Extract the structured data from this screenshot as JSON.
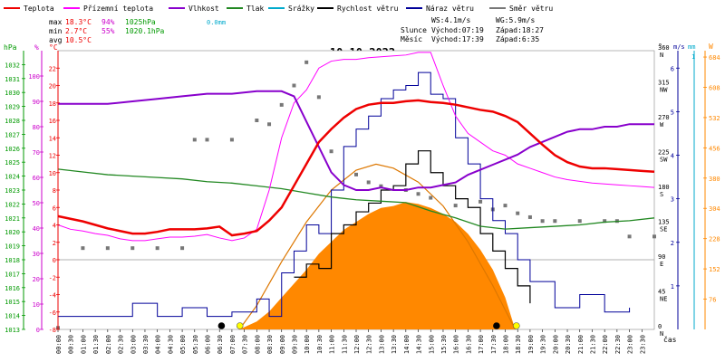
{
  "chart_data": {
    "type": "line",
    "title": "10.10.2022",
    "x_axis": {
      "label": "čas",
      "tick_labels": [
        "00:00",
        "00:30",
        "01:00",
        "01:30",
        "02:00",
        "02:30",
        "03:00",
        "03:30",
        "04:00",
        "04:30",
        "05:00",
        "05:30",
        "06:00",
        "06:30",
        "07:00",
        "07:30",
        "08:00",
        "08:30",
        "09:00",
        "09:30",
        "10:00",
        "10:30",
        "11:00",
        "11:30",
        "12:00",
        "12:30",
        "13:00",
        "13:30",
        "14:00",
        "14:30",
        "15:00",
        "15:30",
        "16:00",
        "16:30",
        "17:00",
        "17:30",
        "18:00",
        "18:30",
        "19:00",
        "19:30",
        "20:00",
        "20:30",
        "21:00",
        "21:30",
        "22:00",
        "22:30",
        "23:00",
        "23:30"
      ],
      "range_hours": [
        0,
        24
      ]
    },
    "axes": {
      "pressure": {
        "unit": "hPa",
        "color": "#009900",
        "ticks": [
          1013,
          1014,
          1015,
          1016,
          1017,
          1018,
          1019,
          1020,
          1021,
          1022,
          1023,
          1024,
          1025,
          1026,
          1027,
          1028,
          1029,
          1030,
          1031,
          1032
        ],
        "range": [
          1013,
          1033
        ]
      },
      "humidity": {
        "unit": "%",
        "color": "#cc00cc",
        "ticks": [
          0,
          10,
          20,
          30,
          40,
          50,
          60,
          70,
          80,
          90,
          100
        ],
        "range": [
          0,
          110
        ]
      },
      "temperature": {
        "unit": "°C",
        "color": "#ee0000",
        "ticks": [
          -8,
          -6,
          -4,
          -2,
          0,
          2,
          4,
          6,
          8,
          10,
          12,
          14,
          16,
          18,
          20,
          22
        ],
        "range": [
          -8,
          24
        ]
      },
      "direction": {
        "unit": "°",
        "color": "#000000",
        "ticks": [
          {
            "v": 0,
            "t": "N"
          },
          {
            "v": 45,
            "t": "NE"
          },
          {
            "v": 90,
            "t": "E"
          },
          {
            "v": 135,
            "t": "SE"
          },
          {
            "v": 180,
            "t": "S"
          },
          {
            "v": 225,
            "t": "SW"
          },
          {
            "v": 270,
            "t": "W"
          },
          {
            "v": 315,
            "t": "NW"
          },
          {
            "v": 360,
            "t": "N"
          }
        ],
        "range": [
          0,
          360
        ]
      },
      "wind_speed": {
        "unit": "m/s",
        "color": "#000099",
        "ticks": [
          1,
          2,
          3,
          4,
          5,
          6
        ],
        "range": [
          0,
          6.4
        ]
      },
      "precipitation": {
        "unit": "mm",
        "color": "#00aacc",
        "ticks": [
          1
        ]
      },
      "solar": {
        "unit": "W",
        "color": "#ff8800",
        "ticks": [
          76,
          152,
          228,
          304,
          380,
          456,
          532,
          608,
          684
        ],
        "range": [
          0,
          700
        ]
      }
    },
    "legend": [
      {
        "name": "Teplota",
        "color": "#ee0000"
      },
      {
        "name": "Přízemní teplota",
        "color": "#ff00ff"
      },
      {
        "name": "Vlhkost",
        "color": "#8800cc"
      },
      {
        "name": "Tlak",
        "color": "#228822"
      },
      {
        "name": "Srážky",
        "color": "#00aacc"
      },
      {
        "name": "Rychlost větru",
        "color": "#000000"
      },
      {
        "name": "Náraz větru",
        "color": "#000099"
      },
      {
        "name": "Směr větru",
        "color": "#777777"
      }
    ],
    "stats": {
      "max": {
        "label": "max",
        "temp": "18.3°C",
        "hum": "94%",
        "press": "1025hPa",
        "rain": "0.0mm"
      },
      "min": {
        "label": "min",
        "temp": "2.7°C",
        "hum": "55%",
        "press": "1020.1hPa"
      },
      "avg": {
        "label": "avg",
        "temp": "10.5°C"
      },
      "ws": "WS:4.1m/s",
      "wg": "WG:5.9m/s",
      "sun": {
        "label": "Slunce",
        "rise": "Východ:07:19",
        "set": "Západ:18:27"
      },
      "moon": {
        "label": "Měsíc",
        "rise": "Východ:17:39",
        "set": "Západ:6:35"
      }
    },
    "series": {
      "temperature": [
        [
          0,
          5
        ],
        [
          0.5,
          4.7
        ],
        [
          1,
          4.4
        ],
        [
          1.5,
          4.0
        ],
        [
          2,
          3.6
        ],
        [
          2.5,
          3.3
        ],
        [
          3,
          3.0
        ],
        [
          3.5,
          3.0
        ],
        [
          4,
          3.2
        ],
        [
          4.5,
          3.5
        ],
        [
          5,
          3.5
        ],
        [
          5.5,
          3.5
        ],
        [
          6,
          3.6
        ],
        [
          6.5,
          3.8
        ],
        [
          7,
          2.8
        ],
        [
          7.5,
          3.0
        ],
        [
          8,
          3.3
        ],
        [
          8.5,
          4.5
        ],
        [
          9,
          6.0
        ],
        [
          9.5,
          8.5
        ],
        [
          10,
          11.0
        ],
        [
          10.5,
          13.5
        ],
        [
          11,
          15.0
        ],
        [
          11.5,
          16.3
        ],
        [
          12,
          17.3
        ],
        [
          12.5,
          17.8
        ],
        [
          13,
          18.0
        ],
        [
          13.5,
          18.0
        ],
        [
          14,
          18.2
        ],
        [
          14.5,
          18.3
        ],
        [
          15,
          18.1
        ],
        [
          15.5,
          18.0
        ],
        [
          16,
          17.8
        ],
        [
          16.5,
          17.5
        ],
        [
          17,
          17.2
        ],
        [
          17.5,
          17.0
        ],
        [
          18,
          16.5
        ],
        [
          18.5,
          15.8
        ],
        [
          19,
          14.5
        ],
        [
          19.5,
          13.2
        ],
        [
          20,
          12.0
        ],
        [
          20.5,
          11.2
        ],
        [
          21,
          10.7
        ],
        [
          21.5,
          10.5
        ],
        [
          22,
          10.5
        ],
        [
          22.5,
          10.4
        ],
        [
          23,
          10.3
        ],
        [
          23.5,
          10.2
        ],
        [
          24,
          10.1
        ]
      ],
      "ground_temperature": [
        [
          0,
          4.0
        ],
        [
          0.5,
          3.5
        ],
        [
          1,
          3.3
        ],
        [
          1.5,
          3.0
        ],
        [
          2,
          2.8
        ],
        [
          2.5,
          2.4
        ],
        [
          3,
          2.2
        ],
        [
          3.5,
          2.2
        ],
        [
          4,
          2.4
        ],
        [
          4.5,
          2.6
        ],
        [
          5,
          2.6
        ],
        [
          5.5,
          2.7
        ],
        [
          6,
          2.9
        ],
        [
          6.5,
          2.5
        ],
        [
          7,
          2.2
        ],
        [
          7.5,
          2.5
        ],
        [
          8,
          3.5
        ],
        [
          8.5,
          8.0
        ],
        [
          9,
          14.0
        ],
        [
          9.5,
          18.0
        ],
        [
          10,
          19.5
        ],
        [
          10.5,
          22.0
        ],
        [
          11,
          22.8
        ],
        [
          11.5,
          23.0
        ],
        [
          12,
          23.0
        ],
        [
          12.5,
          23.2
        ],
        [
          13,
          23.3
        ],
        [
          13.5,
          23.4
        ],
        [
          14,
          23.5
        ],
        [
          14.5,
          23.8
        ],
        [
          15,
          23.8
        ],
        [
          15.5,
          20.0
        ],
        [
          16,
          16.5
        ],
        [
          16.5,
          14.5
        ],
        [
          17,
          13.5
        ],
        [
          17.5,
          12.5
        ],
        [
          18,
          12.0
        ],
        [
          18.5,
          11.0
        ],
        [
          19,
          10.5
        ],
        [
          19.5,
          10.0
        ],
        [
          20,
          9.5
        ],
        [
          20.5,
          9.2
        ],
        [
          21,
          9.0
        ],
        [
          21.5,
          8.8
        ],
        [
          22,
          8.7
        ],
        [
          22.5,
          8.6
        ],
        [
          23,
          8.5
        ],
        [
          23.5,
          8.4
        ],
        [
          24,
          8.3
        ]
      ],
      "humidity": [
        [
          0,
          89
        ],
        [
          1,
          89
        ],
        [
          2,
          89
        ],
        [
          3,
          90
        ],
        [
          4,
          91
        ],
        [
          5,
          92
        ],
        [
          6,
          93
        ],
        [
          7,
          93
        ],
        [
          8,
          94
        ],
        [
          9,
          94
        ],
        [
          9.5,
          92
        ],
        [
          10,
          82
        ],
        [
          10.5,
          72
        ],
        [
          11,
          62
        ],
        [
          11.5,
          57
        ],
        [
          12,
          55
        ],
        [
          12.5,
          55
        ],
        [
          13,
          56
        ],
        [
          13.5,
          55
        ],
        [
          14,
          55
        ],
        [
          14.5,
          56
        ],
        [
          15,
          56
        ],
        [
          15.5,
          57
        ],
        [
          16,
          58
        ],
        [
          16.5,
          61
        ],
        [
          17,
          63
        ],
        [
          17.5,
          65
        ],
        [
          18,
          67
        ],
        [
          18.5,
          69
        ],
        [
          19,
          72
        ],
        [
          19.5,
          74
        ],
        [
          20,
          76
        ],
        [
          20.5,
          78
        ],
        [
          21,
          79
        ],
        [
          21.5,
          79
        ],
        [
          22,
          80
        ],
        [
          22.5,
          80
        ],
        [
          23,
          81
        ],
        [
          23.5,
          81
        ],
        [
          24,
          81
        ]
      ],
      "pressure": [
        [
          0,
          1024.5
        ],
        [
          1,
          1024.3
        ],
        [
          2,
          1024.1
        ],
        [
          3,
          1024.0
        ],
        [
          4,
          1023.9
        ],
        [
          5,
          1023.8
        ],
        [
          6,
          1023.6
        ],
        [
          7,
          1023.5
        ],
        [
          8,
          1023.3
        ],
        [
          9,
          1023.1
        ],
        [
          10,
          1022.8
        ],
        [
          11,
          1022.5
        ],
        [
          12,
          1022.3
        ],
        [
          13,
          1022.2
        ],
        [
          14,
          1022.1
        ],
        [
          15,
          1021.5
        ],
        [
          16,
          1021.0
        ],
        [
          17,
          1020.4
        ],
        [
          18,
          1020.2
        ],
        [
          19,
          1020.3
        ],
        [
          20,
          1020.4
        ],
        [
          21,
          1020.5
        ],
        [
          22,
          1020.7
        ],
        [
          23,
          1020.8
        ],
        [
          24,
          1021.0
        ]
      ],
      "wind_speed_max": [
        [
          9.5,
          1.2
        ],
        [
          10,
          1.5
        ],
        [
          10.5,
          1.4
        ],
        [
          11,
          2.2
        ],
        [
          11.5,
          2.4
        ],
        [
          12,
          2.7
        ],
        [
          12.5,
          2.9
        ],
        [
          13,
          3.2
        ],
        [
          13.5,
          3.3
        ],
        [
          14,
          3.8
        ],
        [
          14.5,
          4.1
        ],
        [
          15,
          3.6
        ],
        [
          15.5,
          3.3
        ],
        [
          16,
          3.0
        ],
        [
          16.5,
          2.8
        ],
        [
          17,
          2.2
        ],
        [
          17.5,
          1.8
        ],
        [
          18,
          1.4
        ],
        [
          18.5,
          1.0
        ],
        [
          19,
          0.6
        ]
      ],
      "wind_gust": [
        [
          0,
          0.3
        ],
        [
          2,
          0.3
        ],
        [
          3,
          0.6
        ],
        [
          4,
          0.3
        ],
        [
          5,
          0.5
        ],
        [
          6,
          0.3
        ],
        [
          7,
          0.4
        ],
        [
          8,
          0.7
        ],
        [
          8.5,
          0.3
        ],
        [
          9,
          1.3
        ],
        [
          9.5,
          1.8
        ],
        [
          10,
          2.4
        ],
        [
          10.5,
          2.2
        ],
        [
          11,
          3.2
        ],
        [
          11.5,
          4.2
        ],
        [
          12,
          4.6
        ],
        [
          12.5,
          4.9
        ],
        [
          13,
          5.3
        ],
        [
          13.5,
          5.5
        ],
        [
          14,
          5.6
        ],
        [
          14.5,
          5.9
        ],
        [
          15,
          5.4
        ],
        [
          15.5,
          5.3
        ],
        [
          16,
          4.4
        ],
        [
          16.5,
          3.8
        ],
        [
          17,
          3.0
        ],
        [
          17.5,
          2.5
        ],
        [
          18,
          2.2
        ],
        [
          18.5,
          1.6
        ],
        [
          19,
          1.1
        ],
        [
          20,
          0.5
        ],
        [
          21,
          0.8
        ],
        [
          22,
          0.4
        ],
        [
          23,
          0.5
        ]
      ],
      "wind_direction": [
        [
          0,
          2
        ],
        [
          1,
          105
        ],
        [
          2,
          105
        ],
        [
          3,
          105
        ],
        [
          4,
          105
        ],
        [
          5,
          105
        ],
        [
          5.5,
          245
        ],
        [
          6,
          245
        ],
        [
          7,
          245
        ],
        [
          8,
          270
        ],
        [
          8.5,
          265
        ],
        [
          9,
          290
        ],
        [
          9.5,
          315
        ],
        [
          10,
          345
        ],
        [
          10.5,
          300
        ],
        [
          11,
          230
        ],
        [
          12,
          200
        ],
        [
          12.5,
          190
        ],
        [
          13,
          185
        ],
        [
          14,
          180
        ],
        [
          14.5,
          175
        ],
        [
          15,
          170
        ],
        [
          16,
          160
        ],
        [
          17,
          165
        ],
        [
          17.5,
          155
        ],
        [
          18,
          160
        ],
        [
          18.5,
          150
        ],
        [
          19,
          145
        ],
        [
          19.5,
          140
        ],
        [
          20,
          140
        ],
        [
          21,
          140
        ],
        [
          22,
          140
        ],
        [
          22.5,
          140
        ],
        [
          23,
          120
        ],
        [
          24,
          120
        ]
      ],
      "solar_radiation": [
        [
          7.3,
          0
        ],
        [
          8,
          20
        ],
        [
          8.5,
          45
        ],
        [
          9,
          80
        ],
        [
          9.5,
          115
        ],
        [
          10,
          150
        ],
        [
          10.5,
          190
        ],
        [
          11,
          220
        ],
        [
          11.5,
          250
        ],
        [
          12,
          270
        ],
        [
          12.5,
          290
        ],
        [
          13,
          305
        ],
        [
          13.5,
          310
        ],
        [
          14,
          320
        ],
        [
          14.5,
          315
        ],
        [
          15,
          305
        ],
        [
          15.5,
          290
        ],
        [
          16,
          270
        ],
        [
          16.5,
          240
        ],
        [
          17,
          200
        ],
        [
          17.5,
          150
        ],
        [
          18,
          80
        ],
        [
          18.4,
          0
        ]
      ],
      "solar_theoretical": [
        [
          7.3,
          0
        ],
        [
          8,
          60
        ],
        [
          9,
          170
        ],
        [
          10,
          270
        ],
        [
          11,
          350
        ],
        [
          12,
          400
        ],
        [
          12.8,
          415
        ],
        [
          13.5,
          405
        ],
        [
          14.5,
          370
        ],
        [
          15.5,
          310
        ],
        [
          16.5,
          220
        ],
        [
          17.5,
          110
        ],
        [
          18.4,
          0
        ]
      ]
    },
    "markers": {
      "sunrise_hour": 7.32,
      "sunset_hour": 18.45,
      "moonrise_hour": 17.65,
      "moonset_hour": 6.58
    }
  }
}
